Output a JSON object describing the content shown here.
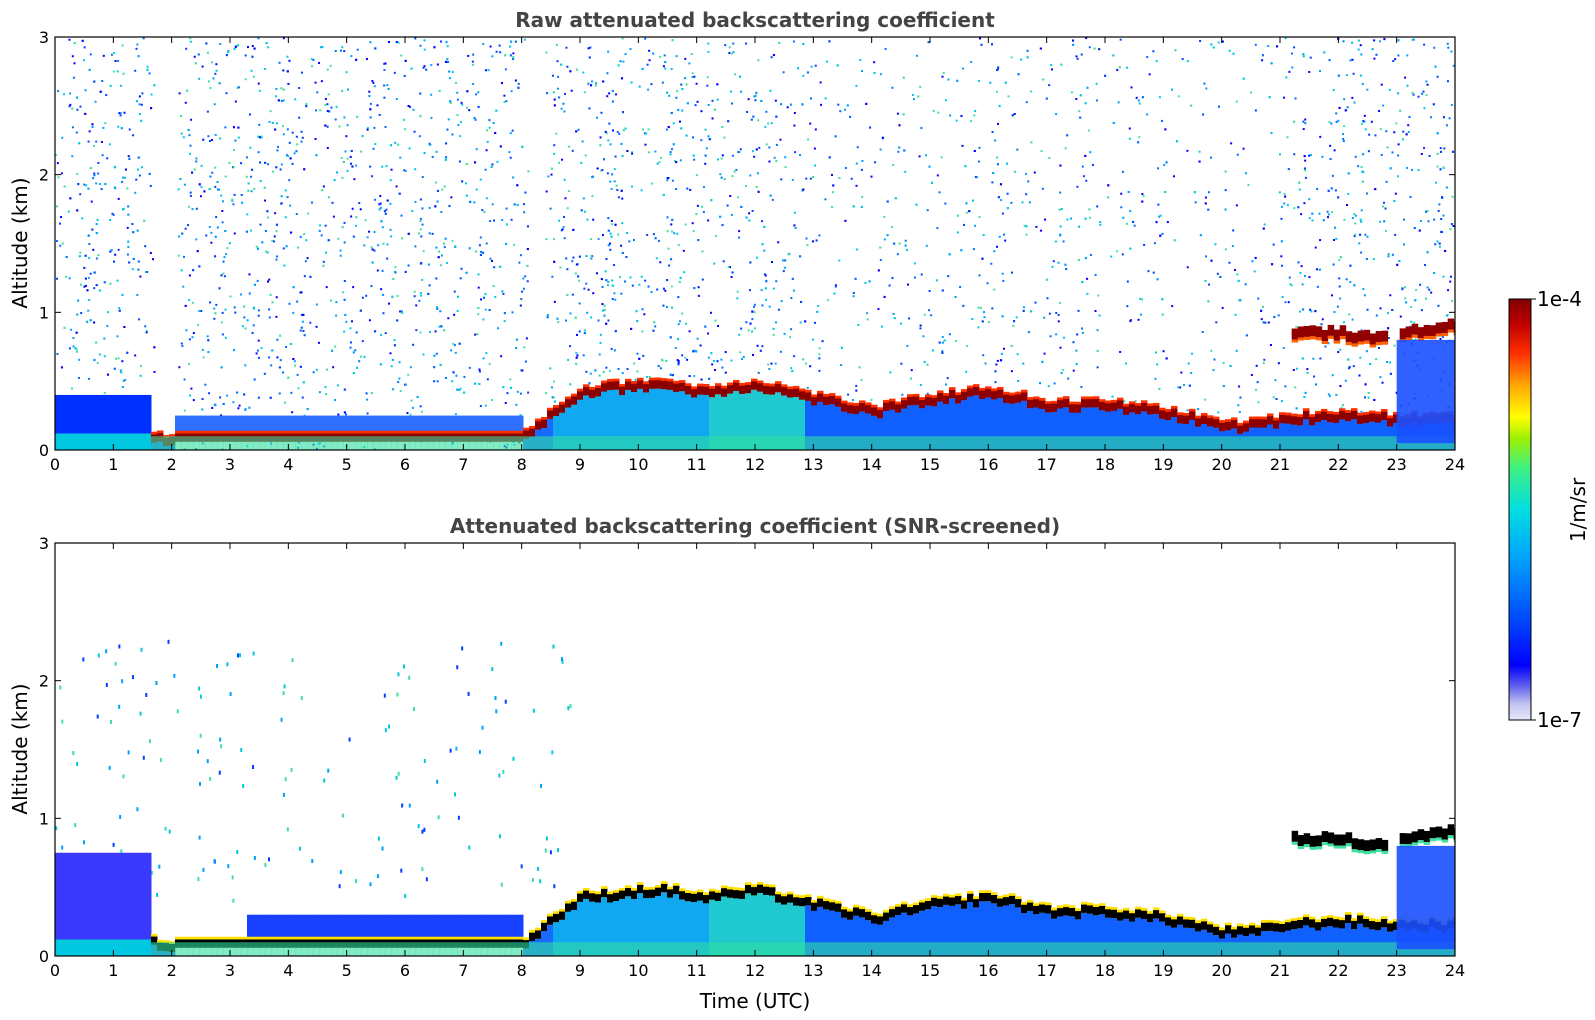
{
  "chart_data": [
    {
      "type": "heatmap",
      "title": "Raw attenuated backscattering coefficient",
      "xlabel": "",
      "ylabel": "Altitude (km)",
      "xlim": [
        0,
        24
      ],
      "ylim": [
        0,
        3
      ],
      "xticks": [
        "0",
        "1",
        "2",
        "3",
        "4",
        "5",
        "6",
        "7",
        "8",
        "9",
        "10",
        "11",
        "12",
        "13",
        "14",
        "15",
        "16",
        "17",
        "18",
        "19",
        "20",
        "21",
        "22",
        "23",
        "24"
      ],
      "yticks": [
        "0",
        "1",
        "2",
        "3"
      ],
      "boundary_layer_top_km": [
        [
          0,
          0.12
        ],
        [
          1.5,
          0.13
        ],
        [
          2,
          0.09
        ],
        [
          3,
          0.07
        ],
        [
          4,
          0.07
        ],
        [
          5,
          0.07
        ],
        [
          6,
          0.07
        ],
        [
          7,
          0.08
        ],
        [
          8,
          0.12
        ],
        [
          8.5,
          0.3
        ],
        [
          9,
          0.45
        ],
        [
          10,
          0.5
        ],
        [
          10.5,
          0.5
        ],
        [
          11,
          0.45
        ],
        [
          12,
          0.5
        ],
        [
          12.5,
          0.45
        ],
        [
          13,
          0.4
        ],
        [
          14,
          0.3
        ],
        [
          15,
          0.4
        ],
        [
          16,
          0.45
        ],
        [
          17,
          0.35
        ],
        [
          18,
          0.35
        ],
        [
          19,
          0.3
        ],
        [
          20,
          0.2
        ],
        [
          20.5,
          0.2
        ],
        [
          21,
          0.25
        ],
        [
          22,
          0.28
        ],
        [
          23,
          0.25
        ]
      ],
      "elevated_layer_km": [
        [
          21.2,
          0.85
        ],
        [
          22,
          0.85
        ],
        [
          22.6,
          0.8
        ],
        [
          23,
          0.85
        ],
        [
          23.9,
          0.9
        ]
      ]
    },
    {
      "type": "heatmap",
      "title": "Attenuated backscattering coefficient (SNR-screened)",
      "xlabel": "Time (UTC)",
      "ylabel": "Altitude (km)",
      "xlim": [
        0,
        24
      ],
      "ylim": [
        0,
        3
      ],
      "xticks": [
        "0",
        "1",
        "2",
        "3",
        "4",
        "5",
        "6",
        "7",
        "8",
        "9",
        "10",
        "11",
        "12",
        "13",
        "14",
        "15",
        "16",
        "17",
        "18",
        "19",
        "20",
        "21",
        "22",
        "23",
        "24"
      ],
      "yticks": [
        "0",
        "1",
        "2",
        "3"
      ]
    }
  ],
  "colorbar": {
    "label": "1/m/sr",
    "max_label": "1e-4",
    "min_label": "1e-7",
    "range": [
      1e-07,
      0.0001
    ],
    "scale": "log",
    "colormap": [
      "#e8e8f8",
      "#c0c0f0",
      "#6060f0",
      "#0000ff",
      "#0050ff",
      "#00a0ff",
      "#00e0e0",
      "#40f080",
      "#a0f000",
      "#ffff00",
      "#ffa000",
      "#ff3000",
      "#c00000",
      "#800000"
    ]
  }
}
